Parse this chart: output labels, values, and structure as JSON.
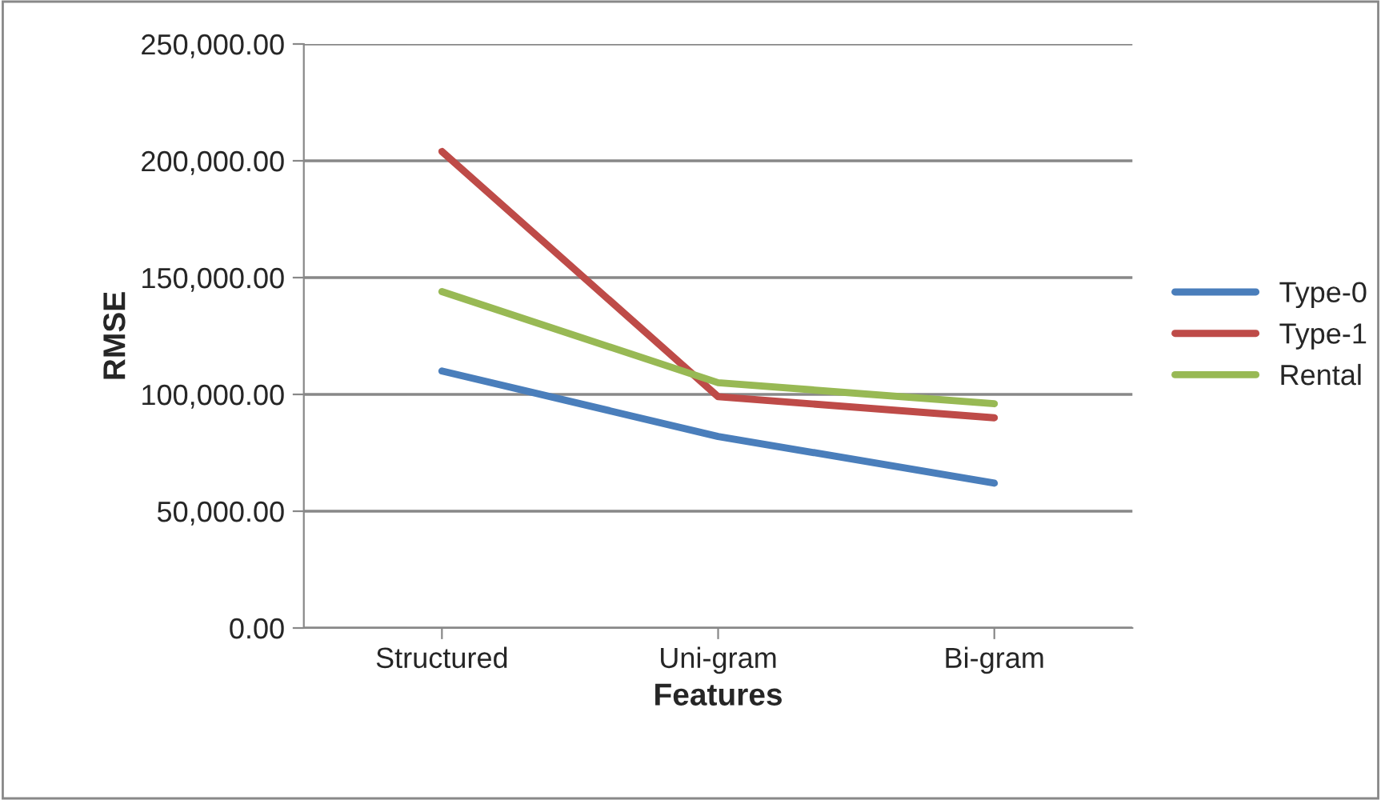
{
  "chart_data": {
    "type": "line",
    "xlabel": "Features",
    "ylabel": "RMSE",
    "categories": [
      "Structured",
      "Uni-gram",
      "Bi-gram"
    ],
    "series": [
      {
        "name": "Type-0",
        "color": "#4a7ebb",
        "values": [
          110000,
          82000,
          62000
        ]
      },
      {
        "name": "Type-1",
        "color": "#be4b48",
        "values": [
          204000,
          99000,
          90000
        ]
      },
      {
        "name": "Rental",
        "color": "#98b954",
        "values": [
          144000,
          105000,
          96000
        ]
      }
    ],
    "ylim": [
      0,
      250000
    ],
    "yticks": [
      {
        "value": 0,
        "label": "0.00"
      },
      {
        "value": 50000,
        "label": "50,000.00"
      },
      {
        "value": 100000,
        "label": "100,000.00"
      },
      {
        "value": 150000,
        "label": "150,000.00"
      },
      {
        "value": 200000,
        "label": "200,000.00"
      },
      {
        "value": 250000,
        "label": "250,000.00"
      }
    ],
    "grid": "y",
    "legend": "right",
    "marker": "none",
    "line_style": "solid"
  }
}
